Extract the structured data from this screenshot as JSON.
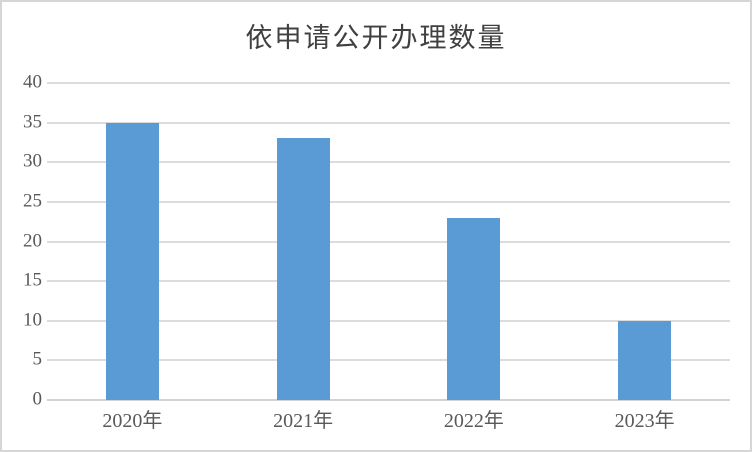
{
  "chart_data": {
    "type": "bar",
    "title": "依申请公开办理数量",
    "categories": [
      "2020年",
      "2021年",
      "2022年",
      "2023年"
    ],
    "values": [
      35,
      33,
      23,
      10
    ],
    "xlabel": "",
    "ylabel": "",
    "ylim": [
      0,
      40
    ],
    "yticks": [
      0,
      5,
      10,
      15,
      20,
      25,
      30,
      35,
      40
    ],
    "grid": "horizontal",
    "legend": "none",
    "colors": {
      "bar_fill": "#5B9BD5",
      "gridline": "#DCDCDC",
      "axis_line": "#D2D2D2",
      "tick_label": "#595959",
      "title_text": "#404040",
      "background": "#FFFFFF",
      "frame_border": "#D6D6D6"
    }
  }
}
